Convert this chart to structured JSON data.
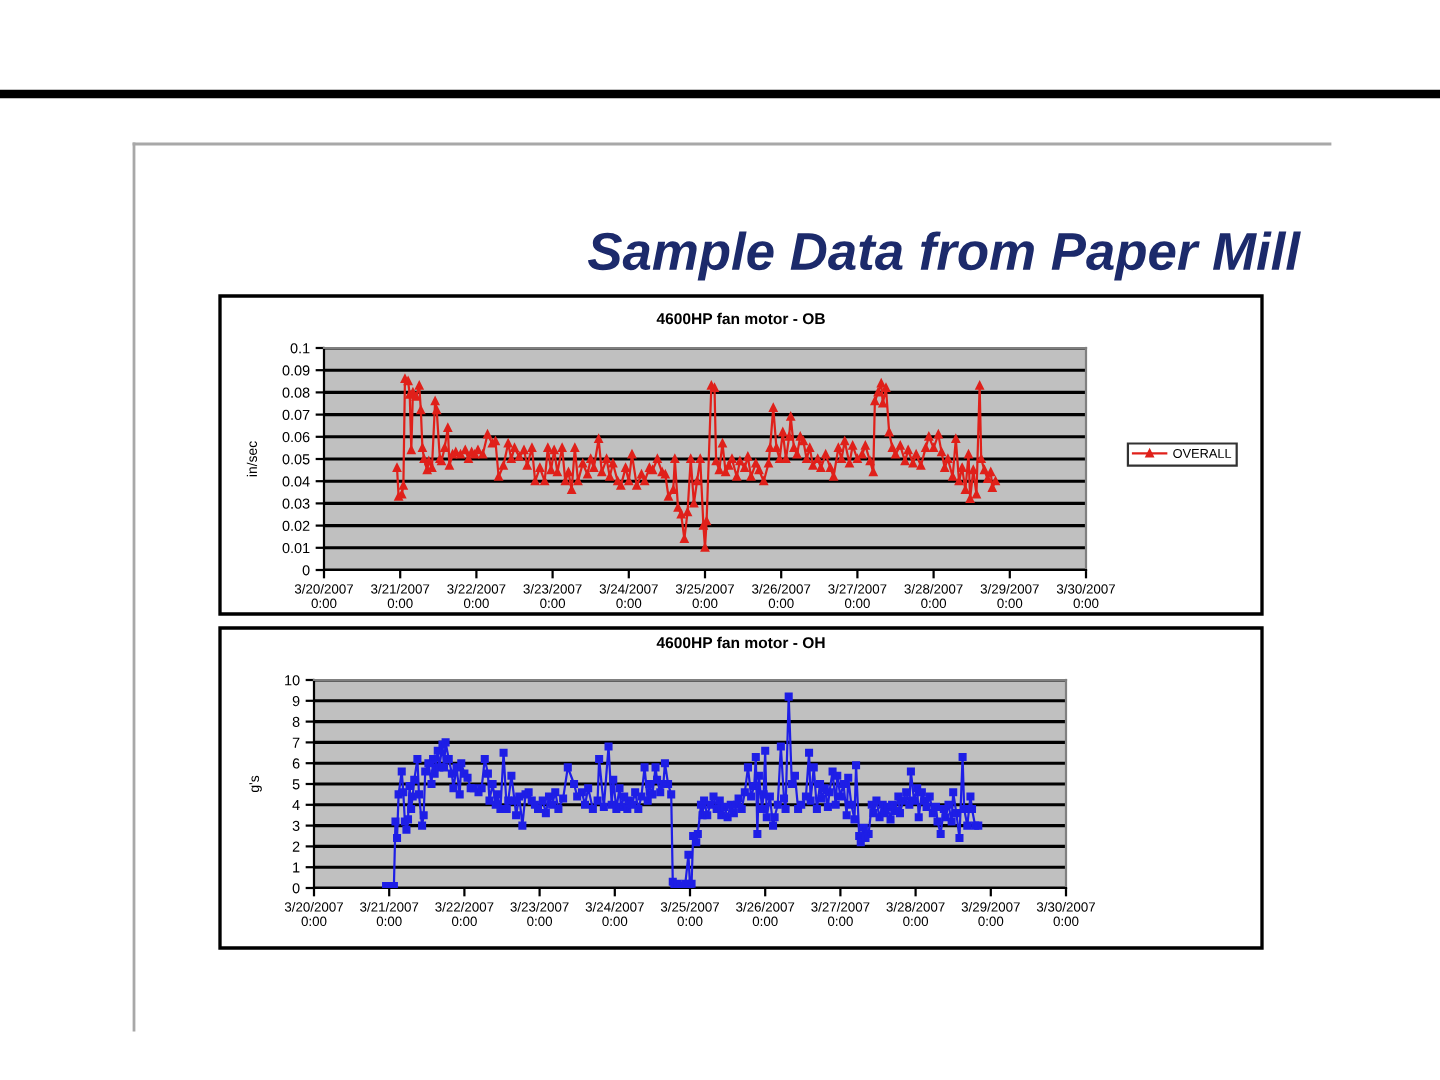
{
  "chart_data": [
    {
      "type": "line",
      "title": "4600HP fan motor - OB",
      "ylabel": "in/sec",
      "annotations": [
        "Sample Data from Paper Mill"
      ],
      "x": [
        "2007-03-20T23:00",
        "2007-03-20T23:30",
        "2007-03-21T00:30",
        "2007-03-21T01:00",
        "2007-03-21T01:30",
        "2007-03-21T02:30",
        "2007-03-21T03:00",
        "2007-03-21T03:30",
        "2007-03-21T04:00",
        "2007-03-21T05:00",
        "2007-03-21T06:00",
        "2007-03-21T06:30",
        "2007-03-21T07:00",
        "2007-03-21T07:30",
        "2007-03-21T08:30",
        "2007-03-21T09:00",
        "2007-03-21T10:00",
        "2007-03-21T11:00",
        "2007-03-21T11:30",
        "2007-03-21T12:30",
        "2007-03-21T13:00",
        "2007-03-21T14:00",
        "2007-03-21T15:00",
        "2007-03-21T15:30",
        "2007-03-21T16:30",
        "2007-03-21T17:30",
        "2007-03-21T19:00",
        "2007-03-21T20:30",
        "2007-03-21T21:30",
        "2007-03-21T22:30",
        "2007-03-21T23:30",
        "2007-03-22T00:30",
        "2007-03-22T02:00",
        "2007-03-22T03:30",
        "2007-03-22T05:00",
        "2007-03-22T06:00",
        "2007-03-22T07:00",
        "2007-03-22T08:30",
        "2007-03-22T10:00",
        "2007-03-22T11:00",
        "2007-03-22T12:00",
        "2007-03-22T13:30",
        "2007-03-22T15:00",
        "2007-03-22T16:00",
        "2007-03-22T17:30",
        "2007-03-22T18:30",
        "2007-03-22T20:00",
        "2007-03-22T21:30",
        "2007-03-22T22:30",
        "2007-03-22T23:30",
        "2007-03-23T00:30",
        "2007-03-23T01:30",
        "2007-03-23T03:00",
        "2007-03-23T04:00",
        "2007-03-23T05:00",
        "2007-03-23T06:00",
        "2007-03-23T07:00",
        "2007-03-23T08:00",
        "2007-03-23T09:30",
        "2007-03-23T11:00",
        "2007-03-23T12:00",
        "2007-03-23T13:00",
        "2007-03-23T14:30",
        "2007-03-23T15:30",
        "2007-03-23T17:00",
        "2007-03-23T18:00",
        "2007-03-23T19:00",
        "2007-03-23T20:30",
        "2007-03-23T21:30",
        "2007-03-23T23:00",
        "2007-03-24T00:00",
        "2007-03-24T01:00",
        "2007-03-24T02:30",
        "2007-03-24T04:00",
        "2007-03-24T05:00",
        "2007-03-24T06:30",
        "2007-03-24T07:30",
        "2007-03-24T09:00",
        "2007-03-24T10:30",
        "2007-03-24T11:30",
        "2007-03-24T12:30",
        "2007-03-24T14:00",
        "2007-03-24T14:30",
        "2007-03-24T15:30",
        "2007-03-24T16:30",
        "2007-03-24T17:30",
        "2007-03-24T18:30",
        "2007-03-24T19:30",
        "2007-03-24T20:30",
        "2007-03-24T21:30",
        "2007-03-24T22:30",
        "2007-03-24T23:30",
        "2007-03-25T00:00",
        "2007-03-25T00:30",
        "2007-03-25T02:00",
        "2007-03-25T03:00",
        "2007-03-25T03:30",
        "2007-03-25T04:30",
        "2007-03-25T05:30",
        "2007-03-25T06:30",
        "2007-03-25T07:30",
        "2007-03-25T08:30",
        "2007-03-25T10:00",
        "2007-03-25T11:00",
        "2007-03-25T12:30",
        "2007-03-25T13:30",
        "2007-03-25T14:30",
        "2007-03-25T16:00",
        "2007-03-25T17:00",
        "2007-03-25T18:30",
        "2007-03-25T20:00",
        "2007-03-25T20:30",
        "2007-03-25T21:30",
        "2007-03-25T22:30",
        "2007-03-25T23:30",
        "2007-03-26T00:30",
        "2007-03-26T01:30",
        "2007-03-26T02:30",
        "2007-03-26T03:00",
        "2007-03-26T04:00",
        "2007-03-26T05:00",
        "2007-03-26T06:00",
        "2007-03-26T07:00",
        "2007-03-26T08:00",
        "2007-03-26T09:00",
        "2007-03-26T10:00",
        "2007-03-26T11:30",
        "2007-03-26T12:30",
        "2007-03-26T14:00",
        "2007-03-26T15:30",
        "2007-03-26T16:30",
        "2007-03-26T18:00",
        "2007-03-26T19:00",
        "2007-03-26T20:00",
        "2007-03-26T21:30",
        "2007-03-26T22:30",
        "2007-03-27T00:00",
        "2007-03-27T01:30",
        "2007-03-27T02:30",
        "2007-03-27T04:00",
        "2007-03-27T05:00",
        "2007-03-27T05:30",
        "2007-03-27T06:30",
        "2007-03-27T07:30",
        "2007-03-27T08:00",
        "2007-03-27T09:00",
        "2007-03-27T10:00",
        "2007-03-27T11:00",
        "2007-03-27T12:00",
        "2007-03-27T13:30",
        "2007-03-27T15:00",
        "2007-03-27T16:00",
        "2007-03-27T17:30",
        "2007-03-27T18:30",
        "2007-03-27T20:00",
        "2007-03-27T21:30",
        "2007-03-27T22:30",
        "2007-03-28T00:00",
        "2007-03-28T01:30",
        "2007-03-28T02:30",
        "2007-03-28T03:30",
        "2007-03-28T04:30",
        "2007-03-28T06:00",
        "2007-03-28T07:00",
        "2007-03-28T08:00",
        "2007-03-28T09:00",
        "2007-03-28T10:00",
        "2007-03-28T11:00",
        "2007-03-28T11:30",
        "2007-03-28T12:30",
        "2007-03-28T13:30",
        "2007-03-28T14:30",
        "2007-03-28T15:00",
        "2007-03-28T16:00",
        "2007-03-28T17:00",
        "2007-03-28T18:00",
        "2007-03-28T18:30",
        "2007-03-28T19:30"
      ],
      "series": [
        {
          "name": "OVERALL",
          "color": "#e0201a",
          "values": [
            0.046,
            0.033,
            0.034,
            0.038,
            0.086,
            0.085,
            0.079,
            0.054,
            0.08,
            0.078,
            0.083,
            0.072,
            0.055,
            0.05,
            0.045,
            0.049,
            0.046,
            0.076,
            0.072,
            0.05,
            0.049,
            0.055,
            0.064,
            0.047,
            0.052,
            0.053,
            0.052,
            0.054,
            0.05,
            0.053,
            0.052,
            0.054,
            0.052,
            0.061,
            0.057,
            0.058,
            0.042,
            0.047,
            0.057,
            0.05,
            0.055,
            0.051,
            0.054,
            0.047,
            0.055,
            0.04,
            0.046,
            0.04,
            0.055,
            0.045,
            0.054,
            0.044,
            0.055,
            0.04,
            0.044,
            0.036,
            0.055,
            0.04,
            0.048,
            0.043,
            0.05,
            0.046,
            0.059,
            0.044,
            0.05,
            0.042,
            0.048,
            0.04,
            0.038,
            0.046,
            0.04,
            0.052,
            0.038,
            0.043,
            0.04,
            0.046,
            0.045,
            0.05,
            0.044,
            0.043,
            0.033,
            0.036,
            0.05,
            0.028,
            0.025,
            0.014,
            0.026,
            0.05,
            0.03,
            0.04,
            0.05,
            0.02,
            0.01,
            0.022,
            0.083,
            0.082,
            0.049,
            0.045,
            0.057,
            0.044,
            0.047,
            0.05,
            0.042,
            0.049,
            0.046,
            0.051,
            0.042,
            0.048,
            0.045,
            0.04,
            0.048,
            0.055,
            0.073,
            0.055,
            0.05,
            0.062,
            0.05,
            0.06,
            0.069,
            0.055,
            0.052,
            0.06,
            0.058,
            0.05,
            0.055,
            0.047,
            0.05,
            0.046,
            0.052,
            0.046,
            0.042,
            0.055,
            0.05,
            0.058,
            0.048,
            0.056,
            0.05,
            0.052,
            0.056,
            0.049,
            0.044,
            0.076,
            0.08,
            0.084,
            0.075,
            0.082,
            0.062,
            0.055,
            0.052,
            0.056,
            0.049,
            0.054,
            0.048,
            0.052,
            0.047,
            0.055,
            0.06,
            0.055,
            0.061,
            0.053,
            0.046,
            0.05,
            0.042,
            0.059,
            0.04,
            0.046,
            0.036,
            0.052,
            0.032,
            0.045,
            0.034,
            0.083,
            0.05,
            0.045,
            0.041,
            0.044,
            0.037,
            0.04
          ]
        }
      ],
      "xlim": [
        "2007-03-20",
        "2007-03-30"
      ],
      "xticks": [
        {
          "value": "2007-03-20",
          "label": "3/20/2007 0:00"
        },
        {
          "value": "2007-03-21",
          "label": "3/21/2007 0:00"
        },
        {
          "value": "2007-03-22",
          "label": "3/22/2007 0:00"
        },
        {
          "value": "2007-03-23",
          "label": "3/23/2007 0:00"
        },
        {
          "value": "2007-03-24",
          "label": "3/24/2007 0:00"
        },
        {
          "value": "2007-03-25",
          "label": "3/25/2007 0:00"
        },
        {
          "value": "2007-03-26",
          "label": "3/26/2007 0:00"
        },
        {
          "value": "2007-03-27",
          "label": "3/27/2007 0:00"
        },
        {
          "value": "2007-03-28",
          "label": "3/28/2007 0:00"
        },
        {
          "value": "2007-03-29",
          "label": "3/29/2007 0:00"
        },
        {
          "value": "2007-03-30",
          "label": "3/30/2007 0:00"
        }
      ],
      "ylim": [
        0,
        0.1
      ],
      "yticks": [
        0,
        0.01,
        0.02,
        0.03,
        0.04,
        0.05,
        0.06,
        0.07,
        0.08,
        0.09,
        0.1
      ],
      "grid": "y",
      "legend": "right",
      "marker": "triangle",
      "line_style": "solid"
    },
    {
      "type": "line",
      "title": "4600HP fan motor - OH",
      "ylabel": "g's",
      "x": [
        "2007-03-20T23:00",
        "2007-03-21T00:00",
        "2007-03-21T01:30",
        "2007-03-21T02:00",
        "2007-03-21T02:30",
        "2007-03-21T03:00",
        "2007-03-21T04:00",
        "2007-03-21T04:30",
        "2007-03-21T05:00",
        "2007-03-21T05:30",
        "2007-03-21T06:00",
        "2007-03-21T06:30",
        "2007-03-21T07:00",
        "2007-03-21T07:30",
        "2007-03-21T08:00",
        "2007-03-21T09:00",
        "2007-03-21T09:30",
        "2007-03-21T10:30",
        "2007-03-21T11:00",
        "2007-03-21T11:30",
        "2007-03-21T12:30",
        "2007-03-21T13:30",
        "2007-03-21T14:00",
        "2007-03-21T14:30",
        "2007-03-21T15:30",
        "2007-03-21T16:00",
        "2007-03-21T17:00",
        "2007-03-21T17:30",
        "2007-03-21T18:00",
        "2007-03-21T19:00",
        "2007-03-21T20:00",
        "2007-03-21T20:30",
        "2007-03-21T21:30",
        "2007-03-21T22:30",
        "2007-03-21T23:00",
        "2007-03-22T00:00",
        "2007-03-22T01:00",
        "2007-03-22T02:00",
        "2007-03-22T03:00",
        "2007-03-22T04:30",
        "2007-03-22T05:30",
        "2007-03-22T06:30",
        "2007-03-22T07:30",
        "2007-03-22T08:00",
        "2007-03-22T09:00",
        "2007-03-22T10:00",
        "2007-03-22T10:30",
        "2007-03-22T11:30",
        "2007-03-22T12:30",
        "2007-03-22T13:30",
        "2007-03-22T14:00",
        "2007-03-22T15:00",
        "2007-03-22T16:00",
        "2007-03-22T16:30",
        "2007-03-22T17:30",
        "2007-03-22T18:30",
        "2007-03-22T19:30",
        "2007-03-22T20:30",
        "2007-03-22T21:30",
        "2007-03-22T22:30",
        "2007-03-22T23:30",
        "2007-03-23T01:00",
        "2007-03-23T02:00",
        "2007-03-23T03:00",
        "2007-03-23T04:00",
        "2007-03-23T05:00",
        "2007-03-23T06:00",
        "2007-03-23T07:30",
        "2007-03-23T09:00",
        "2007-03-23T11:00",
        "2007-03-23T12:00",
        "2007-03-23T13:30",
        "2007-03-23T14:30",
        "2007-03-23T15:30",
        "2007-03-23T17:00",
        "2007-03-23T18:30",
        "2007-03-23T19:00",
        "2007-03-23T20:30",
        "2007-03-23T22:00",
        "2007-03-23T23:00",
        "2007-03-23T23:30",
        "2007-03-24T00:30",
        "2007-03-24T01:30",
        "2007-03-24T02:00",
        "2007-03-24T03:00",
        "2007-03-24T04:00",
        "2007-03-24T04:30",
        "2007-03-24T05:30",
        "2007-03-24T06:30",
        "2007-03-24T07:30",
        "2007-03-24T08:30",
        "2007-03-24T09:30",
        "2007-03-24T10:30",
        "2007-03-24T11:00",
        "2007-03-24T12:00",
        "2007-03-24T13:00",
        "2007-03-24T13:30",
        "2007-03-24T14:30",
        "2007-03-24T15:30",
        "2007-03-24T16:00",
        "2007-03-24T17:00",
        "2007-03-24T18:00",
        "2007-03-24T18:30",
        "2007-03-24T19:00",
        "2007-03-24T20:00",
        "2007-03-24T21:00",
        "2007-03-24T22:00",
        "2007-03-24T22:30",
        "2007-03-24T23:30",
        "2007-03-25T00:00",
        "2007-03-25T00:30",
        "2007-03-25T01:00",
        "2007-03-25T02:00",
        "2007-03-25T02:30",
        "2007-03-25T03:30",
        "2007-03-25T04:00",
        "2007-03-25T04:30",
        "2007-03-25T05:30",
        "2007-03-25T06:30",
        "2007-03-25T07:30",
        "2007-03-25T08:30",
        "2007-03-25T09:30",
        "2007-03-25T10:00",
        "2007-03-25T11:00",
        "2007-03-25T12:00",
        "2007-03-25T13:00",
        "2007-03-25T14:00",
        "2007-03-25T15:00",
        "2007-03-25T15:30",
        "2007-03-25T16:30",
        "2007-03-25T17:30",
        "2007-03-25T18:30",
        "2007-03-25T19:30",
        "2007-03-25T20:30",
        "2007-03-25T21:00",
        "2007-03-25T21:30",
        "2007-03-25T22:00",
        "2007-03-25T23:00",
        "2007-03-25T23:30",
        "2007-03-26T00:00",
        "2007-03-26T00:30",
        "2007-03-26T01:30",
        "2007-03-26T02:30",
        "2007-03-26T03:00",
        "2007-03-26T04:00",
        "2007-03-26T05:00",
        "2007-03-26T06:00",
        "2007-03-26T06:30",
        "2007-03-26T07:30",
        "2007-03-26T08:30",
        "2007-03-26T09:30",
        "2007-03-26T10:30",
        "2007-03-26T11:30",
        "2007-03-26T13:00",
        "2007-03-26T14:00",
        "2007-03-26T14:30",
        "2007-03-26T15:30",
        "2007-03-26T16:30",
        "2007-03-26T17:30",
        "2007-03-26T18:00",
        "2007-03-26T19:00",
        "2007-03-26T20:00",
        "2007-03-26T20:30",
        "2007-03-26T21:30",
        "2007-03-26T22:30",
        "2007-03-26T23:00",
        "2007-03-27T00:00",
        "2007-03-27T01:00",
        "2007-03-27T02:00",
        "2007-03-27T02:30",
        "2007-03-27T03:30",
        "2007-03-27T04:30",
        "2007-03-27T05:00",
        "2007-03-27T06:00",
        "2007-03-27T06:30",
        "2007-03-27T07:30",
        "2007-03-27T08:00",
        "2007-03-27T09:00",
        "2007-03-27T10:00",
        "2007-03-27T10:30",
        "2007-03-27T11:30",
        "2007-03-27T12:30",
        "2007-03-27T13:30",
        "2007-03-27T14:00",
        "2007-03-27T15:00",
        "2007-03-27T16:00",
        "2007-03-27T16:30",
        "2007-03-27T17:30",
        "2007-03-27T18:30",
        "2007-03-27T19:00",
        "2007-03-27T20:00",
        "2007-03-27T21:00",
        "2007-03-27T22:00",
        "2007-03-27T22:30",
        "2007-03-27T23:30",
        "2007-03-28T00:30",
        "2007-03-28T01:00",
        "2007-03-28T02:00",
        "2007-03-28T03:00",
        "2007-03-28T03:30",
        "2007-03-28T04:30",
        "2007-03-28T05:30",
        "2007-03-28T06:30",
        "2007-03-28T07:00",
        "2007-03-28T08:00",
        "2007-03-28T09:00",
        "2007-03-28T09:30",
        "2007-03-28T10:30",
        "2007-03-28T11:30",
        "2007-03-28T12:00",
        "2007-03-28T13:00",
        "2007-03-28T14:00",
        "2007-03-28T15:00",
        "2007-03-28T15:30",
        "2007-03-28T16:30",
        "2007-03-28T17:30",
        "2007-03-28T18:00",
        "2007-03-28T19:00",
        "2007-03-28T20:00"
      ],
      "series": [
        {
          "color": "#1e1ee6",
          "values": [
            0.1,
            0.1,
            0.1,
            3.2,
            2.4,
            4.5,
            5.6,
            4.6,
            3.2,
            2.8,
            3.3,
            4.9,
            3.8,
            4.4,
            5.2,
            6.2,
            4.5,
            3.0,
            3.5,
            5.6,
            6.0,
            5.0,
            6.2,
            5.5,
            6.6,
            5.8,
            6.9,
            5.8,
            7.0,
            6.2,
            5.5,
            4.8,
            5.8,
            4.5,
            6.0,
            5.5,
            5.3,
            4.8,
            4.8,
            4.6,
            4.8,
            6.2,
            5.5,
            4.2,
            5.0,
            4.0,
            4.5,
            3.8,
            6.5,
            3.8,
            4.2,
            5.4,
            4.2,
            3.5,
            4.4,
            3.0,
            4.5,
            4.6,
            4.2,
            4.0,
            3.8,
            4.2,
            3.6,
            4.4,
            4.0,
            4.6,
            3.8,
            4.3,
            5.8,
            5.0,
            4.4,
            4.6,
            4.0,
            4.8,
            3.8,
            4.2,
            6.2,
            3.9,
            6.8,
            4.0,
            5.2,
            3.8,
            4.8,
            3.9,
            4.4,
            3.8,
            4.2,
            4.0,
            4.6,
            3.8,
            4.4,
            5.8,
            4.2,
            5.0,
            4.5,
            5.8,
            5.2,
            4.6,
            5.0,
            6.0,
            5.0,
            4.5,
            0.3,
            0.1,
            0.2,
            0.1,
            0.1,
            0.2,
            1.6,
            0.1,
            0.2,
            2.5,
            2.2,
            2.6,
            4.0,
            3.5,
            4.2,
            3.5,
            4.0,
            4.4,
            3.8,
            4.2,
            3.5,
            3.9,
            3.4,
            4.0,
            3.6,
            4.0,
            4.3,
            3.8,
            4.6,
            5.8,
            4.4,
            4.9,
            6.3,
            2.6,
            5.4,
            3.8,
            4.5,
            6.6,
            3.4,
            4.4,
            3.0,
            3.4,
            4.0,
            6.8,
            4.3,
            3.8,
            9.2,
            5.0,
            5.4,
            3.8,
            4.0,
            4.4,
            6.5,
            4.2,
            5.8,
            3.8,
            5.0,
            4.3,
            4.8,
            3.9,
            4.6,
            5.6,
            4.0,
            5.4,
            4.4,
            5.0,
            3.5,
            5.3,
            4.0,
            3.3,
            5.9,
            2.5,
            2.2,
            2.9,
            2.4,
            2.6,
            4.0,
            3.6,
            4.2,
            3.4,
            4.0,
            3.6,
            3.9,
            3.3,
            4.0,
            3.7,
            4.4,
            3.6,
            4.2,
            4.6,
            4.0,
            5.6,
            4.2,
            4.8,
            3.4,
            4.6,
            4.2,
            3.9,
            4.4,
            3.6,
            3.9,
            3.2,
            2.6,
            3.8,
            3.4,
            4.0,
            3.2,
            4.6,
            3.6,
            2.4,
            6.3,
            3.8,
            3.0,
            4.4,
            3.8,
            3.0,
            3.0
          ]
        }
      ],
      "xlim": [
        "2007-03-20",
        "2007-03-30"
      ],
      "xticks": [
        {
          "value": "2007-03-20",
          "label": "3/20/2007 0:00"
        },
        {
          "value": "2007-03-21",
          "label": "3/21/2007 0:00"
        },
        {
          "value": "2007-03-22",
          "label": "3/22/2007 0:00"
        },
        {
          "value": "2007-03-23",
          "label": "3/23/2007 0:00"
        },
        {
          "value": "2007-03-24",
          "label": "3/24/2007 0:00"
        },
        {
          "value": "2007-03-25",
          "label": "3/25/2007 0:00"
        },
        {
          "value": "2007-03-26",
          "label": "3/26/2007 0:00"
        },
        {
          "value": "2007-03-27",
          "label": "3/27/2007 0:00"
        },
        {
          "value": "2007-03-28",
          "label": "3/28/2007 0:00"
        },
        {
          "value": "2007-03-29",
          "label": "3/29/2007 0:00"
        },
        {
          "value": "2007-03-30",
          "label": "3/30/2007 0:00"
        }
      ],
      "ylim": [
        0,
        10
      ],
      "yticks": [
        0,
        1,
        2,
        3,
        4,
        5,
        6,
        7,
        8,
        9,
        10
      ],
      "grid": "y",
      "marker": "square",
      "line_style": "solid"
    }
  ]
}
